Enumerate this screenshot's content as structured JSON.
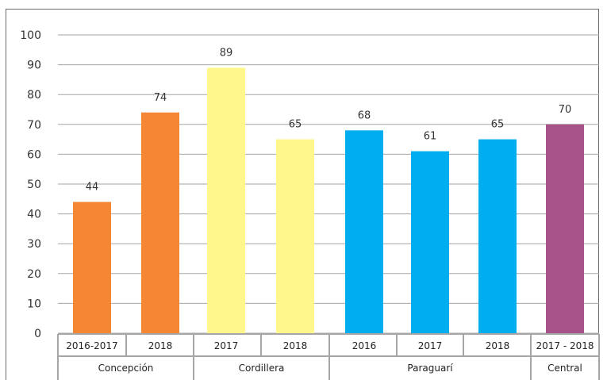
{
  "chart_data": {
    "type": "bar",
    "ylim": [
      0,
      100
    ],
    "yticks": [
      0,
      10,
      20,
      30,
      40,
      50,
      60,
      70,
      80,
      90,
      100
    ],
    "grid": true,
    "bars": [
      {
        "category": "2016-2017",
        "value": 44,
        "label": "44",
        "group": "Concepción",
        "color": "#F48634"
      },
      {
        "category": "2018",
        "value": 74,
        "label": "74",
        "group": "Concepción",
        "color": "#F48634"
      },
      {
        "category": "2017",
        "value": 89,
        "label": "89",
        "group": "Cordillera",
        "color": "#FFF68C"
      },
      {
        "category": "2018",
        "value": 65,
        "label": "65",
        "group": "Cordillera",
        "color": "#FFF68C"
      },
      {
        "category": "2016",
        "value": 68,
        "label": "68",
        "group": "Paraguarí",
        "color": "#00AEEF"
      },
      {
        "category": "2017",
        "value": 61,
        "label": "61",
        "group": "Paraguarí",
        "color": "#00AEEF"
      },
      {
        "category": "2018",
        "value": 65,
        "label": "65",
        "group": "Paraguarí",
        "color": "#00AEEF"
      },
      {
        "category": "2017 - 2018",
        "value": 70,
        "label": "70",
        "group": "Central",
        "color": "#A8528A"
      }
    ],
    "groups": [
      "Concepción",
      "Cordillera",
      "Paraguarí",
      "Central"
    ]
  }
}
